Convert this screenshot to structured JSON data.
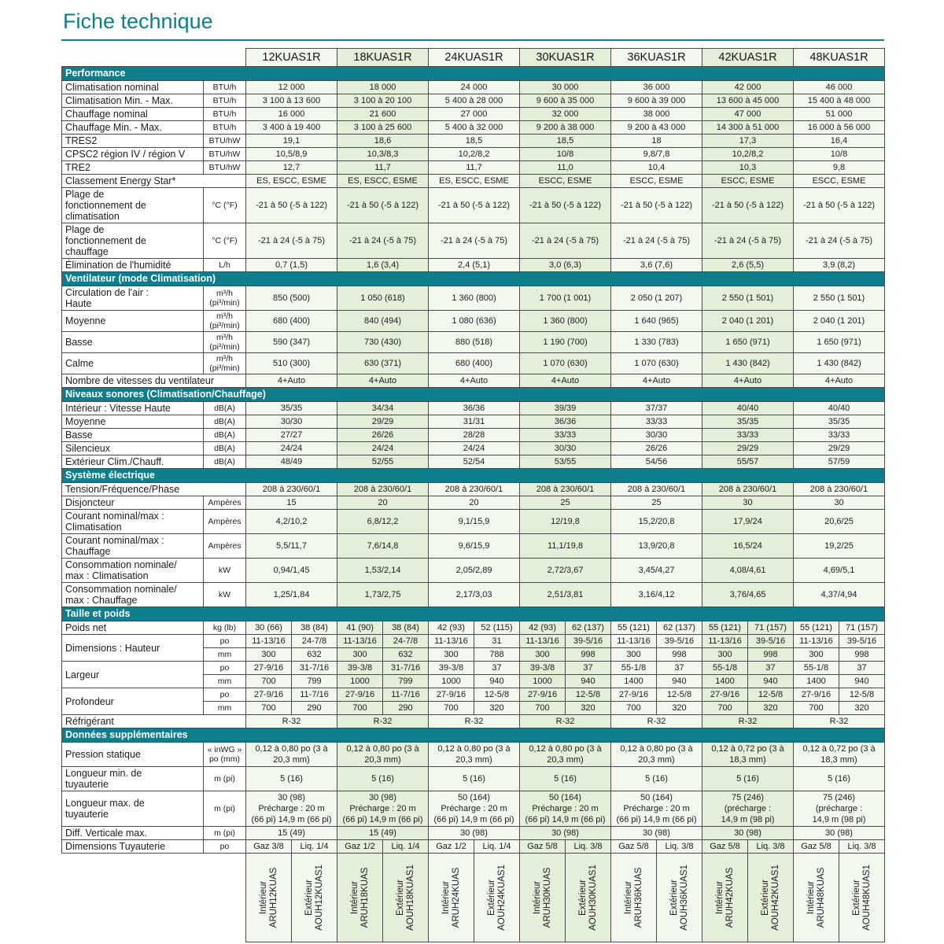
{
  "title": "Fiche technique",
  "colors": {
    "teal": "#0f7e8c",
    "c0": "#f3f8ef",
    "c1": "#e4efda"
  },
  "models": [
    "12KUAS1R",
    "18KUAS1R",
    "24KUAS1R",
    "30KUAS1R",
    "36KUAS1R",
    "42KUAS1R",
    "48KUAS1R"
  ],
  "sections": [
    {
      "title": "Performance",
      "rows": [
        {
          "t": "r",
          "l": "Climatisation nominal",
          "u": "BTU/h",
          "v": [
            "12 000",
            "18 000",
            "24 000",
            "30 000",
            "36 000",
            "42 000",
            "46 000"
          ]
        },
        {
          "t": "r",
          "l": "Climatisation Min. - Max.",
          "u": "BTU/h",
          "v": [
            "3 100 à 13 600",
            "3 100 à 20 100",
            "5 400 à 28 000",
            "9 600 à 35 000",
            "9 600 à 39 000",
            "13 600 à 45 000",
            "15 400 à 48 000"
          ]
        },
        {
          "t": "r",
          "l": "Chauffage nominal",
          "u": "BTU/h",
          "v": [
            "16 000",
            "21 600",
            "27 000",
            "32 000",
            "38 000",
            "47 000",
            "51 000"
          ]
        },
        {
          "t": "r",
          "l": "Chauffage Min. - Max.",
          "u": "BTU/h",
          "v": [
            "3 400 à 19 400",
            "3 100 à 25 600",
            "5 400 à 32 000",
            "9 200 à 38 000",
            "9 200 à 43 000",
            "14 300 à 51 000",
            "16 000 à 56 000"
          ]
        },
        {
          "t": "r",
          "l": "TRES2",
          "u": "BTU/hW",
          "v": [
            "19,1",
            "18,6",
            "18,5",
            "18,5",
            "18",
            "17,3",
            "16,4"
          ]
        },
        {
          "t": "r",
          "l": "CPSC2 région IV / région V",
          "u": "BTU/hW",
          "v": [
            "10,5/8,9",
            "10,3/8,3",
            "10,2/8,2",
            "10/8",
            "9,8/7,8",
            "10,2/8,2",
            "10/8"
          ]
        },
        {
          "t": "r",
          "l": "TRE2",
          "u": "BTU/hW",
          "v": [
            "12,7",
            "11,7",
            "11,7",
            "11,0",
            "10,4",
            "10,3",
            "9,8"
          ]
        },
        {
          "t": "rs",
          "l": "Classement Energy Star*",
          "v": [
            "ES, ESCC, ESME",
            "ES, ESCC, ESME",
            "ES, ESCC, ESME",
            "ESCC, ESME",
            "ESCC, ESME",
            "ESCC, ESME",
            "ESCC, ESME"
          ]
        },
        {
          "t": "r",
          "l": "Plage de\nfonctionnement de\nclimatisation",
          "u": "°C (°F)",
          "v": [
            "-21 à 50 (-5 à 122)",
            "-21 à 50 (-5 à 122)",
            "-21 à 50 (-5 à 122)",
            "-21 à 50 (-5 à 122)",
            "-21 à 50 (-5 à 122)",
            "-21 à 50 (-5 à 122)",
            "-21 à 50 (-5 à 122)"
          ]
        },
        {
          "t": "r",
          "l": "Plage de\nfonctionnement de\nchauffage",
          "u": "°C (°F)",
          "v": [
            "-21 à 24 (-5 à 75)",
            "-21 à 24 (-5 à 75)",
            "-21 à 24 (-5 à 75)",
            "-21 à 24 (-5 à 75)",
            "-21 à 24 (-5 à 75)",
            "-21 à 24 (-5 à 75)",
            "-21 à 24 (-5 à 75)"
          ]
        },
        {
          "t": "r",
          "l": "Élimination de l'humidité",
          "u": "L/h",
          "v": [
            "0,7 (1,5)",
            "1,6 (3,4)",
            "2,4 (5,1)",
            "3,0 (6,3)",
            "3,6 (7,6)",
            "2,6 (5,5)",
            "3,9 (8,2)"
          ]
        }
      ]
    },
    {
      "title": "Ventilateur (mode Climatisation)",
      "rows": [
        {
          "t": "r",
          "l": "Circulation de l'air :\nHaute",
          "u": "m³/h\n(pi³/min)",
          "v": [
            "850 (500)",
            "1 050 (618)",
            "1 360 (800)",
            "1 700 (1 001)",
            "2 050 (1 207)",
            "2 550 (1 501)",
            "2 550 (1 501)"
          ]
        },
        {
          "t": "r",
          "l": "Moyenne",
          "u": "m³/h\n(pi³/min)",
          "v": [
            "680 (400)",
            "840 (494)",
            "1 080 (636)",
            "1 360 (800)",
            "1 640 (965)",
            "2 040 (1 201)",
            "2 040 (1 201)"
          ]
        },
        {
          "t": "r",
          "l": "Basse",
          "u": "m³/h\n(pi³/min)",
          "v": [
            "590 (347)",
            "730 (430)",
            "880 (518)",
            "1 190 (700)",
            "1 330 (783)",
            "1 650 (971)",
            "1 650 (971)"
          ]
        },
        {
          "t": "r",
          "l": "Calme",
          "u": "m³/h\n(pi³/min)",
          "v": [
            "510 (300)",
            "630 (371)",
            "680 (400)",
            "1 070 (630)",
            "1 070 (630)",
            "1 430 (842)",
            "1 430 (842)"
          ]
        },
        {
          "t": "rs",
          "l": "Nombre de vitesses du ventilateur",
          "v": [
            "4+Auto",
            "4+Auto",
            "4+Auto",
            "4+Auto",
            "4+Auto",
            "4+Auto",
            "4+Auto"
          ]
        }
      ]
    },
    {
      "title": "Niveaux sonores (Climatisation/Chauffage)",
      "rows": [
        {
          "t": "r",
          "l": "Intérieur : Vitesse Haute",
          "u": "dB(A)",
          "v": [
            "35/35",
            "34/34",
            "36/36",
            "39/39",
            "37/37",
            "40/40",
            "40/40"
          ]
        },
        {
          "t": "r",
          "l": "Moyenne",
          "u": "dB(A)",
          "v": [
            "30/30",
            "29/29",
            "31/31",
            "36/36",
            "33/33",
            "35/35",
            "35/35"
          ]
        },
        {
          "t": "r",
          "l": "Basse",
          "u": "dB(A)",
          "v": [
            "27/27",
            "26/26",
            "28/28",
            "33/33",
            "30/30",
            "33/33",
            "33/33"
          ]
        },
        {
          "t": "r",
          "l": "Silencieux",
          "u": "dB(A)",
          "v": [
            "24/24",
            "24/24",
            "24/24",
            "30/30",
            "26/26",
            "29/29",
            "29/29"
          ]
        },
        {
          "t": "r",
          "l": "Extérieur Clim./Chauff.",
          "u": "dB(A)",
          "v": [
            "48/49",
            "52/55",
            "52/54",
            "53/55",
            "54/56",
            "55/57",
            "57/59"
          ]
        }
      ]
    },
    {
      "title": "Système électrique",
      "rows": [
        {
          "t": "rs",
          "l": "Tension/Fréquence/Phase",
          "v": [
            "208 à 230/60/1",
            "208 à 230/60/1",
            "208 à 230/60/1",
            "208 à 230/60/1",
            "208 à 230/60/1",
            "208 à 230/60/1",
            "208 à 230/60/1"
          ]
        },
        {
          "t": "r",
          "l": "Disjoncteur",
          "u": "Ampères",
          "v": [
            "15",
            "20",
            "20",
            "25",
            "25",
            "30",
            "30"
          ]
        },
        {
          "t": "r",
          "l": "Courant nominal/max :\nClimatisation",
          "u": "Ampères",
          "v": [
            "4,2/10,2",
            "6,8/12,2",
            "9,1/15,9",
            "12/19,8",
            "15,2/20,8",
            "17,9/24",
            "20,6/25"
          ]
        },
        {
          "t": "r",
          "l": "Courant nominal/max :\nChauffage",
          "u": "Ampères",
          "v": [
            "5,5/11,7",
            "7,6/14,8",
            "9,6/15,9",
            "11,1/19,8",
            "13,9/20,8",
            "16,5/24",
            "19,2/25"
          ]
        },
        {
          "t": "r",
          "l": "Consommation nominale/\nmax : Climatisation",
          "u": "kW",
          "v": [
            "0,94/1,45",
            "1,53/2,14",
            "2,05/2,89",
            "2,72/3,67",
            "3,45/4,27",
            "4,08/4,61",
            "4,69/5,1"
          ]
        },
        {
          "t": "r",
          "l": "Consommation nominale/\nmax : Chauffage",
          "u": "kW",
          "v": [
            "1,25/1,84",
            "1,73/2,75",
            "2,17/3,03",
            "2,51/3,81",
            "3,16/4,12",
            "3,76/4,65",
            "4,37/4,94"
          ]
        }
      ]
    },
    {
      "title": "Taille et poids",
      "rows": [
        {
          "t": "p",
          "l": "Poids net",
          "u": "kg (lb)",
          "v": [
            [
              "30 (66)",
              "38 (84)"
            ],
            [
              "41 (90)",
              "38 (84)"
            ],
            [
              "42 (93)",
              "52 (115)"
            ],
            [
              "42 (93)",
              "62 (137)"
            ],
            [
              "55 (121)",
              "62 (137)"
            ],
            [
              "55 (121)",
              "71 (157)"
            ],
            [
              "55 (121)",
              "71 (157)"
            ]
          ]
        },
        {
          "t": "d",
          "l": "Dimensions : Hauteur",
          "rows": [
            {
              "u": "po",
              "v": [
                [
                  "11-13/16",
                  "24-7/8"
                ],
                [
                  "11-13/16",
                  "24-7/8"
                ],
                [
                  "11-13/16",
                  "31"
                ],
                [
                  "11-13/16",
                  "39-5/16"
                ],
                [
                  "11-13/16",
                  "39-5/16"
                ],
                [
                  "11-13/16",
                  "39-5/16"
                ],
                [
                  "11-13/16",
                  "39-5/16"
                ]
              ]
            },
            {
              "u": "mm",
              "v": [
                [
                  "300",
                  "632"
                ],
                [
                  "300",
                  "632"
                ],
                [
                  "300",
                  "788"
                ],
                [
                  "300",
                  "998"
                ],
                [
                  "300",
                  "998"
                ],
                [
                  "300",
                  "998"
                ],
                [
                  "300",
                  "998"
                ]
              ]
            }
          ]
        },
        {
          "t": "d",
          "l": "Largeur",
          "rows": [
            {
              "u": "po",
              "v": [
                [
                  "27-9/16",
                  "31-7/16"
                ],
                [
                  "39-3/8",
                  "31-7/16"
                ],
                [
                  "39-3/8",
                  "37"
                ],
                [
                  "39-3/8",
                  "37"
                ],
                [
                  "55-1/8",
                  "37"
                ],
                [
                  "55-1/8",
                  "37"
                ],
                [
                  "55-1/8",
                  "37"
                ]
              ]
            },
            {
              "u": "mm",
              "v": [
                [
                  "700",
                  "799"
                ],
                [
                  "1000",
                  "799"
                ],
                [
                  "1000",
                  "940"
                ],
                [
                  "1000",
                  "940"
                ],
                [
                  "1400",
                  "940"
                ],
                [
                  "1400",
                  "940"
                ],
                [
                  "1400",
                  "940"
                ]
              ]
            }
          ]
        },
        {
          "t": "d",
          "l": "Profondeur",
          "rows": [
            {
              "u": "po",
              "v": [
                [
                  "27-9/16",
                  "11-7/16"
                ],
                [
                  "27-9/16",
                  "11-7/16"
                ],
                [
                  "27-9/16",
                  "12-5/8"
                ],
                [
                  "27-9/16",
                  "12-5/8"
                ],
                [
                  "27-9/16",
                  "12-5/8"
                ],
                [
                  "27-9/16",
                  "12-5/8"
                ],
                [
                  "27-9/16",
                  "12-5/8"
                ]
              ]
            },
            {
              "u": "mm",
              "v": [
                [
                  "700",
                  "290"
                ],
                [
                  "700",
                  "290"
                ],
                [
                  "700",
                  "320"
                ],
                [
                  "700",
                  "320"
                ],
                [
                  "700",
                  "320"
                ],
                [
                  "700",
                  "320"
                ],
                [
                  "700",
                  "320"
                ]
              ]
            }
          ]
        },
        {
          "t": "rs",
          "l": "Réfrigérant",
          "v": [
            "R-32",
            "R-32",
            "R-32",
            "R-32",
            "R-32",
            "R-32",
            "R-32"
          ]
        }
      ]
    },
    {
      "title": "Données supplémentaires",
      "rows": [
        {
          "t": "r",
          "l": "Pression statique",
          "u": "« inWG »\npo (mm)",
          "v": [
            "0,12 à 0,80 po (3 à\n20,3 mm)",
            "0,12 à 0,80 po (3 à\n20,3 mm)",
            "0,12 à 0,80 po (3 à\n20,3 mm)",
            "0,12 à 0,80 po (3 à\n20,3 mm)",
            "0,12 à 0,80 po (3 à\n20,3 mm)",
            "0,12 à 0,72 po (3 à\n18,3 mm)",
            "0,12 à 0,72 po (3 à\n18,3 mm)"
          ]
        },
        {
          "t": "r",
          "l": "Longueur min. de\ntuyauterie",
          "u": "m (pi)",
          "v": [
            "5 (16)",
            "5 (16)",
            "5 (16)",
            "5 (16)",
            "5 (16)",
            "5 (16)",
            "5 (16)"
          ]
        },
        {
          "t": "r",
          "l": "Longueur max. de\ntuyauterie",
          "u": "m (pi)",
          "v": [
            "30 (98)\nPrécharge : 20 m\n(66 pi) 14,9 m (66 pi)",
            "30 (98)\nPrécharge : 20 m\n(66 pi) 14,9 m (66 pi)",
            "50 (164)\nPrécharge : 20 m\n(66 pi) 14,9 m (66 pi)",
            "50 (164)\nPrécharge : 20 m\n(66 pi) 14,9 m (66 pi)",
            "50 (164)\nPrécharge : 20 m\n(66 pi) 14,9 m (66 pi)",
            "75 (246)\n(précharge :\n14,9 m (98 pi)",
            "75 (246)\n(précharge :\n14,9 m (98 pi)"
          ]
        },
        {
          "t": "r",
          "l": "Diff. Verticale max.",
          "u": "m (pi)",
          "v": [
            "15 (49)",
            "15 (49)",
            "30 (98)",
            "30 (98)",
            "30 (98)",
            "30 (98)",
            "30 (98)"
          ]
        },
        {
          "t": "p",
          "l": "Dimensions Tuyauterie",
          "u": "po",
          "v": [
            [
              "Gaz 3/8",
              "Liq. 1/4"
            ],
            [
              "Gaz 1/2",
              "Liq. 1/4"
            ],
            [
              "Gaz 1/2",
              "Liq. 1/4"
            ],
            [
              "Gaz 5/8",
              "Liq. 3/8"
            ],
            [
              "Gaz 5/8",
              "Liq. 3/8"
            ],
            [
              "Gaz 5/8",
              "Liq. 3/8"
            ],
            [
              "Gaz 5/8",
              "Liq. 3/8"
            ]
          ]
        }
      ]
    }
  ],
  "footer": {
    "units": [
      {
        "in_label": "Intérieur",
        "in_model": "ARUH12KUAS",
        "out_label": "Extérieur",
        "out_model": "AOUH12KUAS1"
      },
      {
        "in_label": "Intérieur",
        "in_model": "ARUH18KUAS",
        "out_label": "Extérieur",
        "out_model": "AOUH18KUAS1"
      },
      {
        "in_label": "Intérieur",
        "in_model": "ARUH24KUAS",
        "out_label": "Extérieur",
        "out_model": "AOUH24KUAS1"
      },
      {
        "in_label": "Intérieur",
        "in_model": "ARUH30KUAS",
        "out_label": "Extérieur",
        "out_model": "AOUH30KUAS1"
      },
      {
        "in_label": "Intérieur",
        "in_model": "ARUH36KUAS",
        "out_label": "Extérieur",
        "out_model": "AOUH36KUAS1"
      },
      {
        "in_label": "Intérieur",
        "in_model": "ARUH42KUAS",
        "out_label": "Extérieur",
        "out_model": "AOUH42KUAS1"
      },
      {
        "in_label": "Intérieur",
        "in_model": "ARUH48KUAS",
        "out_label": "Extérieur",
        "out_model": "AOUH48KUAS1"
      }
    ]
  }
}
